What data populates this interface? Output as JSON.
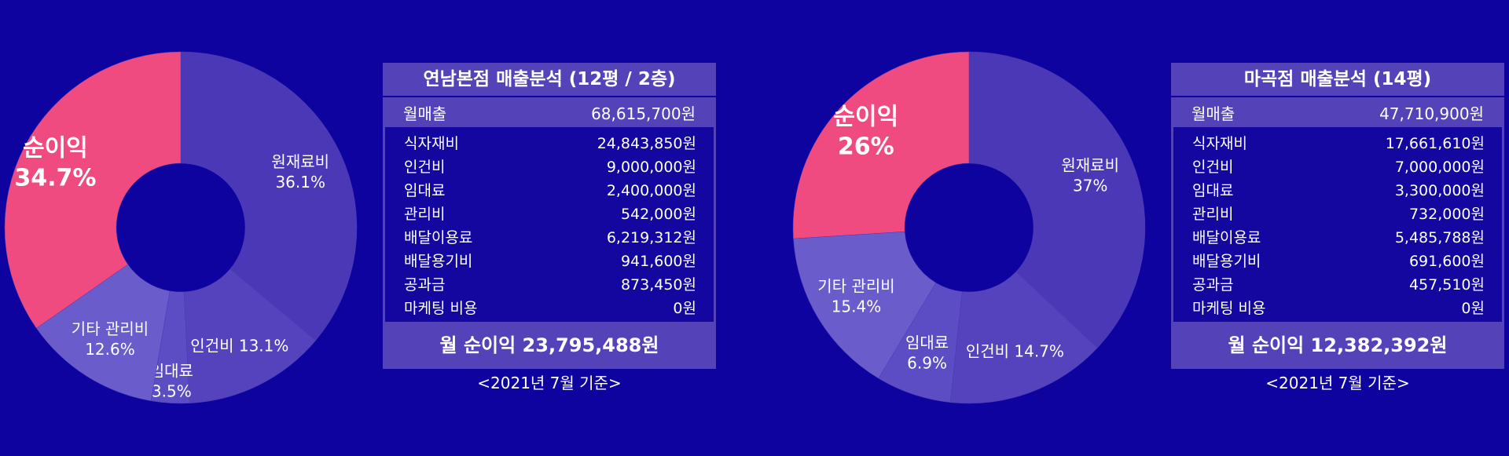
{
  "colors": {
    "background": "#0e039f",
    "slice_base": "#4a38b6",
    "slice_alt": "#5443bd",
    "slice_misc": "#6a5ccb",
    "profit": "#f04b80",
    "panel": "#5443b8",
    "panel_inner": "#14079f"
  },
  "chart_data": [
    {
      "type": "pie",
      "categories": [
        "원재료비",
        "인건비",
        "임대료",
        "기타 관리비",
        "순이익"
      ],
      "values": [
        36.1,
        13.1,
        3.5,
        12.6,
        34.7
      ],
      "labels": [
        "36.1%",
        "13.1%",
        "3.5%",
        "12.6%",
        "34.7%"
      ],
      "highlight": "순이익"
    },
    {
      "type": "pie",
      "categories": [
        "원재료비",
        "인건비",
        "임대료",
        "기타 관리비",
        "순이익"
      ],
      "values": [
        37,
        14.7,
        6.9,
        15.4,
        26
      ],
      "labels": [
        "37%",
        "14.7%",
        "6.9%",
        "15.4%",
        "26%"
      ],
      "highlight": "순이익"
    }
  ],
  "stores": [
    {
      "title": "연남본점 매출분석 (12평 / 2층)",
      "revenue_label": "월매출",
      "revenue_value": "68,615,700원",
      "costs": [
        {
          "label": "식자재비",
          "value": "24,843,850원"
        },
        {
          "label": "인건비",
          "value": "9,000,000원"
        },
        {
          "label": "임대료",
          "value": "2,400,000원"
        },
        {
          "label": "관리비",
          "value": "542,000원"
        },
        {
          "label": "배달이용료",
          "value": "6,219,312원"
        },
        {
          "label": "배달용기비",
          "value": "941,600원"
        },
        {
          "label": "공과금",
          "value": "873,450원"
        },
        {
          "label": "마케팅 비용",
          "value": "0원"
        }
      ],
      "profit": "월 순이익 23,795,488원",
      "footnote": "<2021년 7월 기준>"
    },
    {
      "title": "마곡점 매출분석 (14평)",
      "revenue_label": "월매출",
      "revenue_value": "47,710,900원",
      "costs": [
        {
          "label": "식자재비",
          "value": "17,661,610원"
        },
        {
          "label": "인건비",
          "value": "7,000,000원"
        },
        {
          "label": "임대료",
          "value": "3,300,000원"
        },
        {
          "label": "관리비",
          "value": "732,000원"
        },
        {
          "label": "배달이용료",
          "value": "5,485,788원"
        },
        {
          "label": "배달용기비",
          "value": "691,600원"
        },
        {
          "label": "공과금",
          "value": "457,510원"
        },
        {
          "label": "마케팅 비용",
          "value": "0원"
        }
      ],
      "profit": "월 순이익 12,382,392원",
      "footnote": "<2021년 7월 기준>"
    }
  ]
}
